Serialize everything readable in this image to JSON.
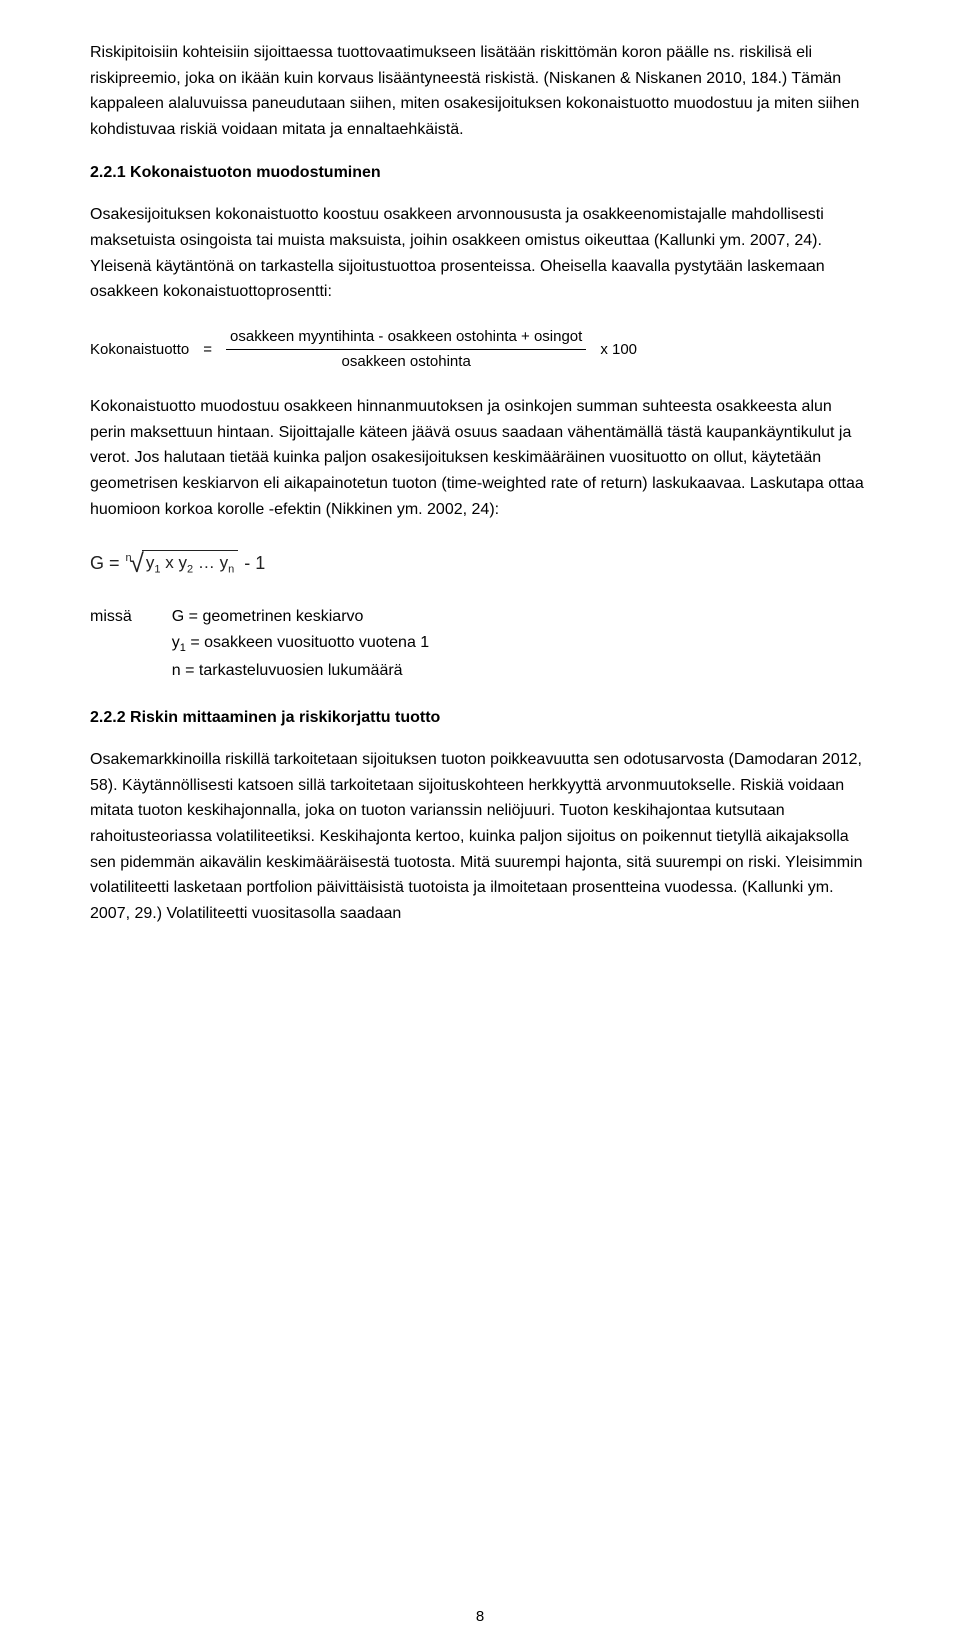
{
  "para1": "Riskipitoisiin kohteisiin sijoittaessa tuottovaatimukseen lisätään riskittömän koron päälle ns. riskilisä eli riskipreemio, joka on ikään kuin korvaus lisääntyneestä riskistä. (Niskanen & Niskanen 2010, 184.) Tämän kappaleen alaluvuissa paneudutaan siihen, miten osakesijoituksen kokonaistuotto muodostuu ja miten siihen kohdistuvaa riskiä voidaan mitata ja ennaltaehkäistä.",
  "heading1": "2.2.1   Kokonaistuoton muodostuminen",
  "para2": "Osakesijoituksen kokonaistuotto koostuu osakkeen arvonnoususta ja osakkeenomistajalle mahdollisesti maksetuista osingoista tai muista maksuista, joihin osakkeen omistus oikeuttaa (Kallunki ym. 2007, 24). Yleisenä käytäntönä on tarkastella sijoitustuottoa prosenteissa. Oheisella kaavalla pystytään laskemaan osakkeen kokonaistuottoprosentti:",
  "formula1": {
    "lhs": "Kokonaistuotto",
    "eq": "=",
    "numerator": "osakkeen myyntihinta - osakkeen ostohinta + osingot",
    "denominator": "osakkeen ostohinta",
    "tail": "x 100"
  },
  "para3": "Kokonaistuotto muodostuu osakkeen hinnanmuutoksen ja osinkojen summan suhteesta osakkeesta alun perin maksettuun hintaan. Sijoittajalle käteen jäävä osuus saadaan vähentämällä tästä kaupankäyntikulut ja verot. Jos halutaan tietää kuinka paljon osakesijoituksen keskimääräinen vuosituotto on ollut, käytetään geometrisen keskiarvon eli aikapainotetun tuoton (time-weighted rate of return) laskukaavaa.  Laskutapa ottaa huomioon korkoa korolle -efektin (Nikkinen ym. 2002, 24):",
  "geq": {
    "lhs": "G =",
    "index": "n",
    "radicand_parts": {
      "y1": "y",
      "s1": "1",
      "x1": " x ",
      "y2": "y",
      "s2": "2",
      "dots": " … ",
      "yn": "y",
      "sn": "n"
    },
    "tail": " - 1"
  },
  "where": {
    "label": "missä",
    "l1a": "G = geometrinen keskiarvo",
    "l2a": "y",
    "l2b": "1",
    "l2c": " = osakkeen vuosituotto vuotena 1",
    "l3a": "n = tarkasteluvuosien lukumäärä"
  },
  "heading2": "2.2.2   Riskin mittaaminen ja riskikorjattu tuotto",
  "para4": "Osakemarkkinoilla riskillä tarkoitetaan sijoituksen tuoton poikkeavuutta sen odotusarvosta (Damodaran 2012, 58). Käytännöllisesti katsoen sillä tarkoitetaan sijoituskohteen herkkyyttä arvonmuutokselle. Riskiä voidaan mitata tuoton keskihajonnalla, joka on tuoton varianssin neliöjuuri. Tuoton keskihajontaa kutsutaan rahoitusteoriassa volatiliteetiksi. Keskihajonta kertoo, kuinka paljon sijoitus on poikennut tietyllä aikajaksolla sen pidemmän aikavälin keskimääräisestä tuotosta. Mitä suurempi hajonta, sitä suurempi on riski. Yleisimmin volatiliteetti lasketaan portfolion päivittäisistä tuotoista ja ilmoitetaan prosentteina vuodessa. (Kallunki ym. 2007, 29.) Volatiliteetti vuositasolla saadaan",
  "pagenum": "8"
}
